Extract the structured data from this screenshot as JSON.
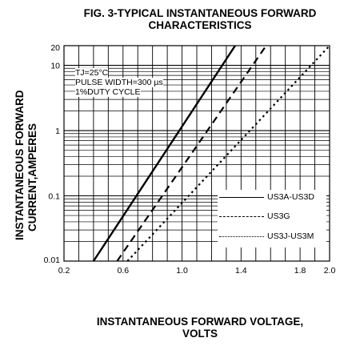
{
  "chart_data": {
    "type": "line",
    "title": "FIG. 3-TYPICAL INSTANTANEOUS FORWARD CHARACTERISTICS",
    "title_lines": [
      "FIG. 3-TYPICAL INSTANTANEOUS FORWARD",
      "CHARACTERISTICS"
    ],
    "xlabel": "INSTANTANEOUS FORWARD VOLTAGE, VOLTS",
    "xlabel_lines": [
      "INSTANTANEOUS FORWARD VOLTAGE,",
      "VOLTS"
    ],
    "ylabel": "INSTANTANEOUS FORWARD CURRENT,AMPERES",
    "ylabel_lines": [
      "INSTANTANEOUS FORWARD",
      "CURRENT,AMPERES"
    ],
    "xlim": [
      0.2,
      2.0
    ],
    "ylim": [
      0.01,
      20
    ],
    "yscale": "log",
    "grid": true,
    "legend_position": "bottom-right",
    "xticks": [
      {
        "value": 0.2,
        "label": "0.2"
      },
      {
        "value": 0.6,
        "label": "0.6"
      },
      {
        "value": 1.0,
        "label": "1.0"
      },
      {
        "value": 1.4,
        "label": "1.4"
      },
      {
        "value": 1.8,
        "label": "1.8"
      },
      {
        "value": 2.0,
        "label": "2.0"
      }
    ],
    "yticks": [
      {
        "value": 0.01,
        "label": "0.01"
      },
      {
        "value": 0.1,
        "label": "0.1"
      },
      {
        "value": 1,
        "label": "1"
      },
      {
        "value": 10,
        "label": "10"
      },
      {
        "value": 20,
        "label": "20"
      }
    ],
    "conditions": [
      "TJ=25°C",
      "PULSE WIDTH=300 µs",
      "1%DUTY CYCLE"
    ],
    "series": [
      {
        "name": "US3A-US3D",
        "style": "solid",
        "x": [
          0.4,
          1.36
        ],
        "y": [
          0.01,
          20
        ]
      },
      {
        "name": "US3G",
        "style": "dashed",
        "x": [
          0.56,
          1.57
        ],
        "y": [
          0.01,
          20
        ]
      },
      {
        "name": "US3J-US3M",
        "style": "dotted",
        "x": [
          0.63,
          2.0
        ],
        "y": [
          0.01,
          20
        ]
      }
    ]
  }
}
